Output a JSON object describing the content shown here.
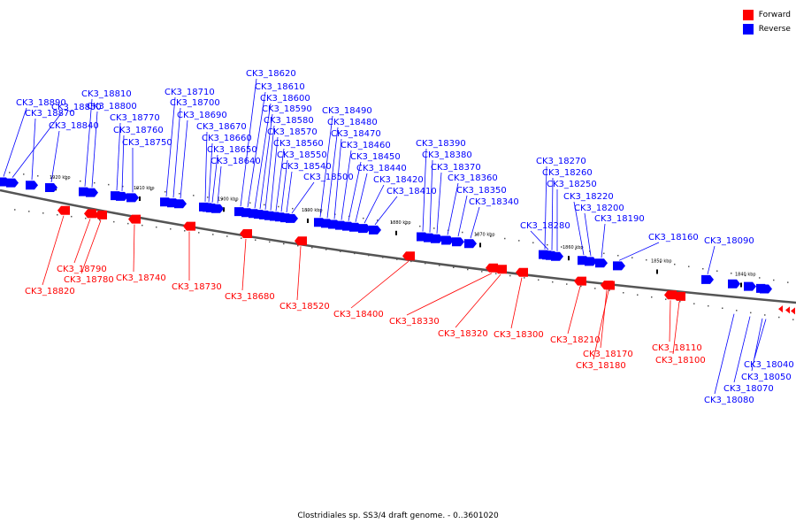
{
  "caption": "Clostridiales sp. SS3/4 draft genome. - 0..3601020",
  "legend": [
    {
      "label": "Forward",
      "color": "#ff0000"
    },
    {
      "label": "Reverse",
      "color": "#0000ff"
    }
  ],
  "colors": {
    "forward": "#ff0000",
    "reverse": "#0000ff",
    "backbone": "#555555"
  },
  "ticks": [
    "1920 kbp",
    "1910 kbp",
    "1900 kbp",
    "1890 kbp",
    "1880 kbp",
    "1870 kbp",
    "1860 kbp",
    "1850 kbp",
    "1840 kbp"
  ],
  "reverse_genes": [
    "CK3_18850",
    "CK3_18890",
    "CK3_18870",
    "CK3_18840",
    "CK3_18810",
    "CK3_18800",
    "CK3_18770",
    "CK3_18760",
    "CK3_18750",
    "CK3_18710",
    "CK3_18700",
    "CK3_18690",
    "CK3_18670",
    "CK3_18660",
    "CK3_18650",
    "CK3_18640",
    "CK3_18620",
    "CK3_18610",
    "CK3_18600",
    "CK3_18590",
    "CK3_18580",
    "CK3_18570",
    "CK3_18560",
    "CK3_18550",
    "CK3_18540",
    "CK3_18500",
    "CK3_18490",
    "CK3_18480",
    "CK3_18470",
    "CK3_18460",
    "CK3_18450",
    "CK3_18440",
    "CK3_18420",
    "CK3_18410",
    "CK3_18390",
    "CK3_18380",
    "CK3_18370",
    "CK3_18360",
    "CK3_18350",
    "CK3_18340",
    "CK3_18270",
    "CK3_18260",
    "CK3_18250",
    "CK3_18220",
    "CK3_18200",
    "CK3_18190",
    "CK3_18280",
    "CK3_18160",
    "CK3_18090",
    "CK3_18040",
    "CK3_18050",
    "CK3_18070",
    "CK3_18080"
  ],
  "forward_genes": [
    "CK3_18790",
    "CK3_18780",
    "CK3_18820",
    "CK3_18740",
    "CK3_18730",
    "CK3_18680",
    "CK3_18520",
    "CK3_18400",
    "CK3_18330",
    "CK3_18320",
    "CK3_18300",
    "CK3_18210",
    "CK3_18170",
    "CK3_18180",
    "CK3_18110",
    "CK3_18100"
  ]
}
